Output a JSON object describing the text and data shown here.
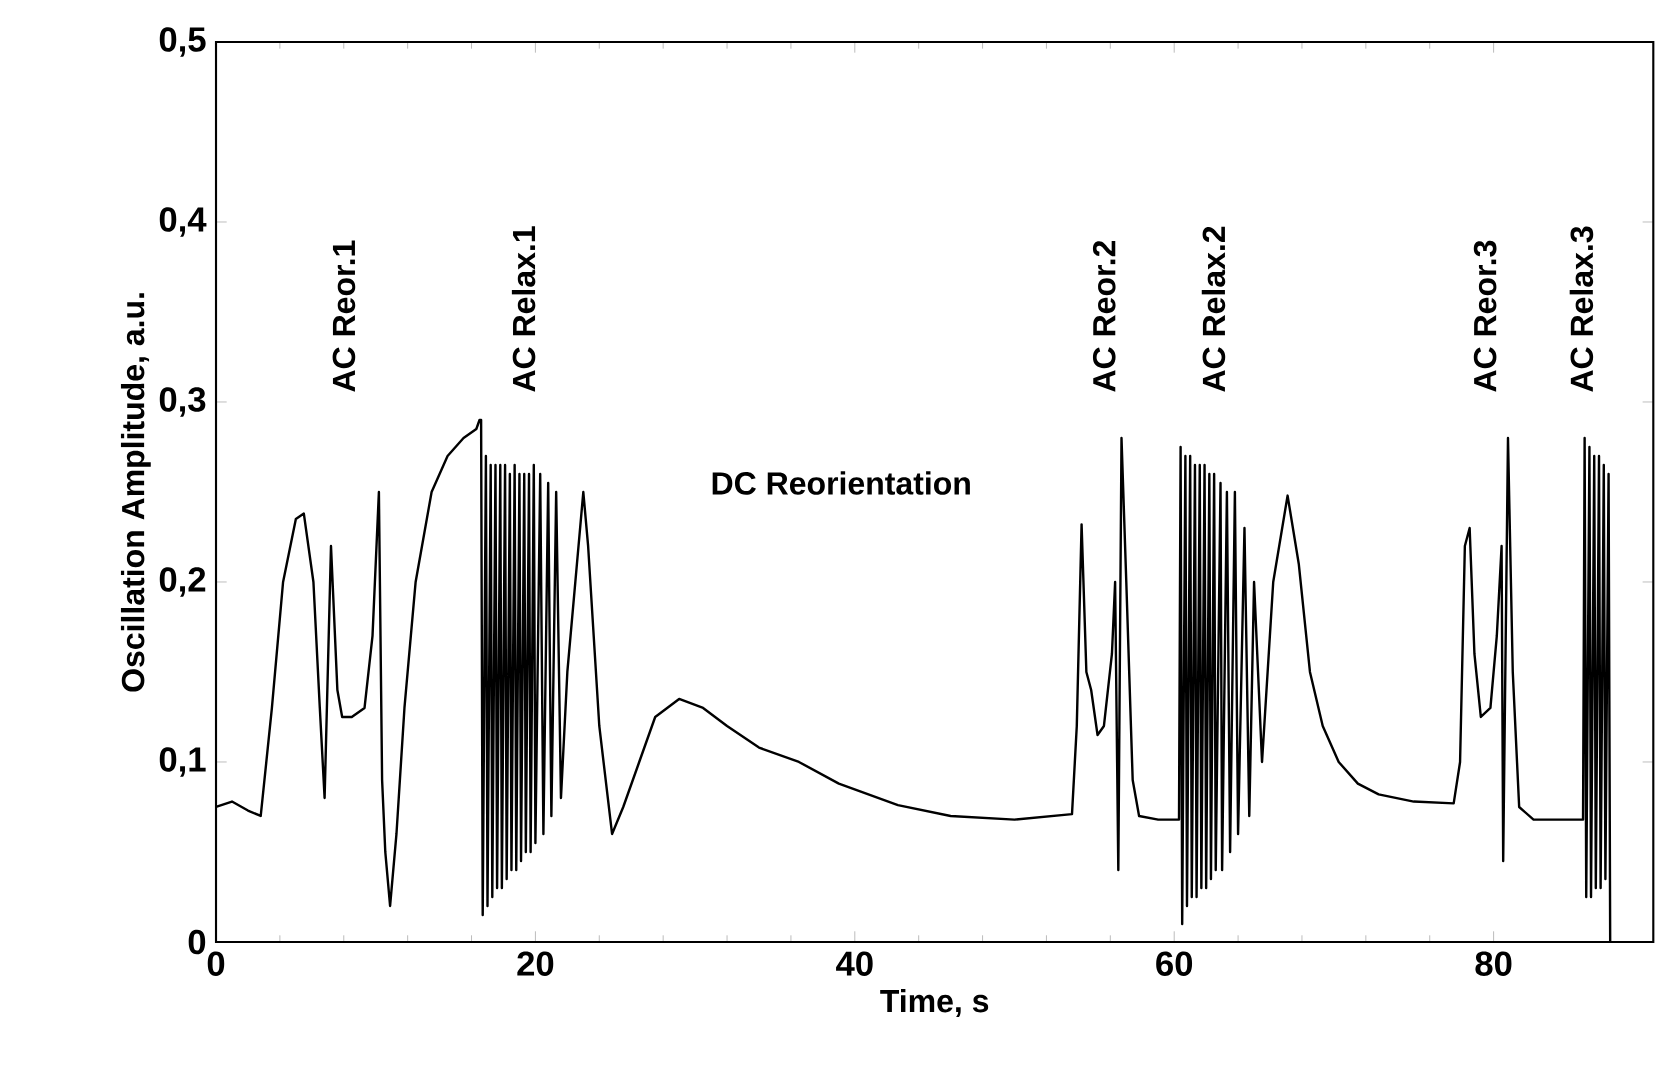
{
  "chart_data": {
    "type": "line",
    "xlabel": "Time, s",
    "ylabel": "Oscillation Amplitude, a.u.",
    "xlim": [
      0,
      90
    ],
    "ylim": [
      0,
      0.5
    ],
    "xticks": [
      0,
      20,
      40,
      60,
      80
    ],
    "yticks": [
      {
        "value": 0,
        "label": "0"
      },
      {
        "value": 0.1,
        "label": "0,1"
      },
      {
        "value": 0.2,
        "label": "0,2"
      },
      {
        "value": 0.3,
        "label": "0,3"
      },
      {
        "value": 0.4,
        "label": "0,4"
      },
      {
        "value": 0.5,
        "label": "0,5"
      }
    ],
    "marker": "none",
    "line_style": "solid",
    "annotations": [
      "AC Reor.1",
      "AC Relax.1",
      "AC Reor.2",
      "AC Relax.2",
      "AC Reor.3",
      "AC Relax.3",
      "DC Reorientation"
    ],
    "series": [
      {
        "color": "#000000",
        "x": [
          0,
          1,
          2,
          2.8,
          3.5,
          4.2,
          5.0,
          5.5,
          6.1,
          6.5,
          6.8,
          7.2,
          7.6,
          7.9,
          8.5,
          9.3,
          9.8,
          10.2,
          10.4,
          10.6,
          10.9,
          11.3,
          11.8,
          12.5,
          13.5,
          14.5,
          15.5,
          16.3,
          16.5,
          16.6,
          16.7,
          16.9,
          17.0,
          17.2,
          17.3,
          17.5,
          17.6,
          17.8,
          17.9,
          18.1,
          18.2,
          18.4,
          18.5,
          18.7,
          18.8,
          19.0,
          19.1,
          19.3,
          19.4,
          19.6,
          19.7,
          19.9,
          20.0,
          20.3,
          20.5,
          20.8,
          21.0,
          21.3,
          21.6,
          22.0,
          22.5,
          23.0,
          23.3,
          24.0,
          24.8,
          25.5,
          26.5,
          27.5,
          29.0,
          30.5,
          32,
          34,
          36.5,
          39,
          42.7,
          46,
          50,
          53.6,
          53.9,
          54.2,
          54.5,
          54.8,
          55.2,
          55.6,
          56.1,
          56.3,
          56.5,
          56.7,
          57.0,
          57.4,
          57.8,
          59,
          60.3,
          60.4,
          60.5,
          60.7,
          60.8,
          61.0,
          61.1,
          61.3,
          61.4,
          61.6,
          61.7,
          61.9,
          62.0,
          62.2,
          62.3,
          62.5,
          62.6,
          62.9,
          63.0,
          63.3,
          63.5,
          63.8,
          64.0,
          64.4,
          64.7,
          65.0,
          65.5,
          66.2,
          67.1,
          67.8,
          68.5,
          69.3,
          70.3,
          71.5,
          72.8,
          75,
          77.5,
          77.9,
          78.2,
          78.5,
          78.8,
          79.2,
          79.8,
          80.2,
          80.5,
          80.6,
          80.9,
          81.2,
          81.6,
          82.5,
          84,
          85.6,
          85.7,
          85.8,
          86.0,
          86.1,
          86.3,
          86.4,
          86.6,
          86.7,
          86.9,
          87.0,
          87.2,
          87.3
        ],
        "values": [
          0.075,
          0.078,
          0.073,
          0.07,
          0.13,
          0.2,
          0.235,
          0.238,
          0.2,
          0.13,
          0.08,
          0.22,
          0.14,
          0.125,
          0.125,
          0.13,
          0.17,
          0.25,
          0.09,
          0.05,
          0.02,
          0.06,
          0.13,
          0.2,
          0.25,
          0.27,
          0.28,
          0.285,
          0.29,
          0.29,
          0.015,
          0.27,
          0.02,
          0.265,
          0.025,
          0.265,
          0.03,
          0.265,
          0.03,
          0.265,
          0.035,
          0.26,
          0.04,
          0.265,
          0.04,
          0.26,
          0.045,
          0.26,
          0.05,
          0.26,
          0.05,
          0.265,
          0.055,
          0.26,
          0.06,
          0.255,
          0.07,
          0.25,
          0.08,
          0.15,
          0.2,
          0.25,
          0.22,
          0.12,
          0.06,
          0.075,
          0.1,
          0.125,
          0.135,
          0.13,
          0.12,
          0.108,
          0.1,
          0.088,
          0.076,
          0.07,
          0.068,
          0.071,
          0.12,
          0.232,
          0.15,
          0.14,
          0.115,
          0.12,
          0.16,
          0.2,
          0.04,
          0.28,
          0.2,
          0.09,
          0.07,
          0.068,
          0.068,
          0.275,
          0.01,
          0.27,
          0.02,
          0.27,
          0.025,
          0.265,
          0.025,
          0.265,
          0.03,
          0.265,
          0.03,
          0.26,
          0.035,
          0.26,
          0.04,
          0.255,
          0.04,
          0.25,
          0.05,
          0.25,
          0.06,
          0.23,
          0.07,
          0.2,
          0.1,
          0.2,
          0.248,
          0.21,
          0.15,
          0.12,
          0.1,
          0.088,
          0.082,
          0.078,
          0.077,
          0.1,
          0.22,
          0.23,
          0.16,
          0.125,
          0.13,
          0.17,
          0.22,
          0.045,
          0.28,
          0.15,
          0.075,
          0.068,
          0.068,
          0.068,
          0.28,
          0.025,
          0.275,
          0.025,
          0.27,
          0.03,
          0.27,
          0.03,
          0.265,
          0.035,
          0.26,
          0.0
        ]
      }
    ]
  }
}
